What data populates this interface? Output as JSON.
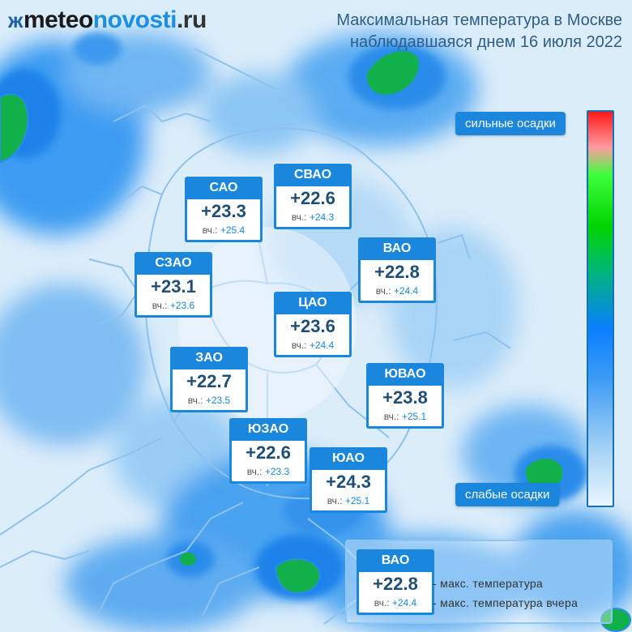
{
  "header": {
    "brand_part1": "meteo",
    "brand_part2": "novosti",
    "brand_part3": ".ru",
    "title_line1": "Максимальная температура в Москве",
    "title_line2": "наблюдавшаяся днем 16 июля 2022"
  },
  "scale": {
    "top_label": "сильные осадки",
    "bottom_label": "слабые осадки",
    "colors": [
      "#ff1a1a",
      "#ff9aa0",
      "#3dff3d",
      "#00d400",
      "#0a7fff",
      "#a6d3f5",
      "#eaf6ff"
    ]
  },
  "districts": [
    {
      "name": "САО",
      "temp": "+23.3",
      "yest_prefix": "вч.:",
      "yest": "+25.4"
    },
    {
      "name": "СВАО",
      "temp": "+22.6",
      "yest_prefix": "вч.:",
      "yest": "+24.3"
    },
    {
      "name": "ВАО",
      "temp": "+22.8",
      "yest_prefix": "вч.:",
      "yest": "+24.4"
    },
    {
      "name": "СЗАО",
      "temp": "+23.1",
      "yest_prefix": "вч.:",
      "yest": "+23.6"
    },
    {
      "name": "ЦАО",
      "temp": "+23.6",
      "yest_prefix": "вч.:",
      "yest": "+24.4"
    },
    {
      "name": "ЗАО",
      "temp": "+22.7",
      "yest_prefix": "вч.:",
      "yest": "+23.5"
    },
    {
      "name": "ЮВАО",
      "temp": "+23.8",
      "yest_prefix": "вч.:",
      "yest": "+25.1"
    },
    {
      "name": "ЮЗАО",
      "temp": "+22.6",
      "yest_prefix": "вч.:",
      "yest": "+23.3"
    },
    {
      "name": "ЮАО",
      "temp": "+24.3",
      "yest_prefix": "вч.:",
      "yest": "+25.1"
    }
  ],
  "legend": {
    "name": "ВАО",
    "temp": "+22.8",
    "yest_prefix": "вч.:",
    "yest": "+24.4",
    "line1": "- макс. температура",
    "line2": "- макс. температура вчера"
  },
  "colors": {
    "accent": "#1a86dc",
    "temp_text": "#1f4e79",
    "rain_light": "#eaf6ff",
    "rain_medium": "#3e9cf5",
    "rain_heavy": "#00c853"
  }
}
